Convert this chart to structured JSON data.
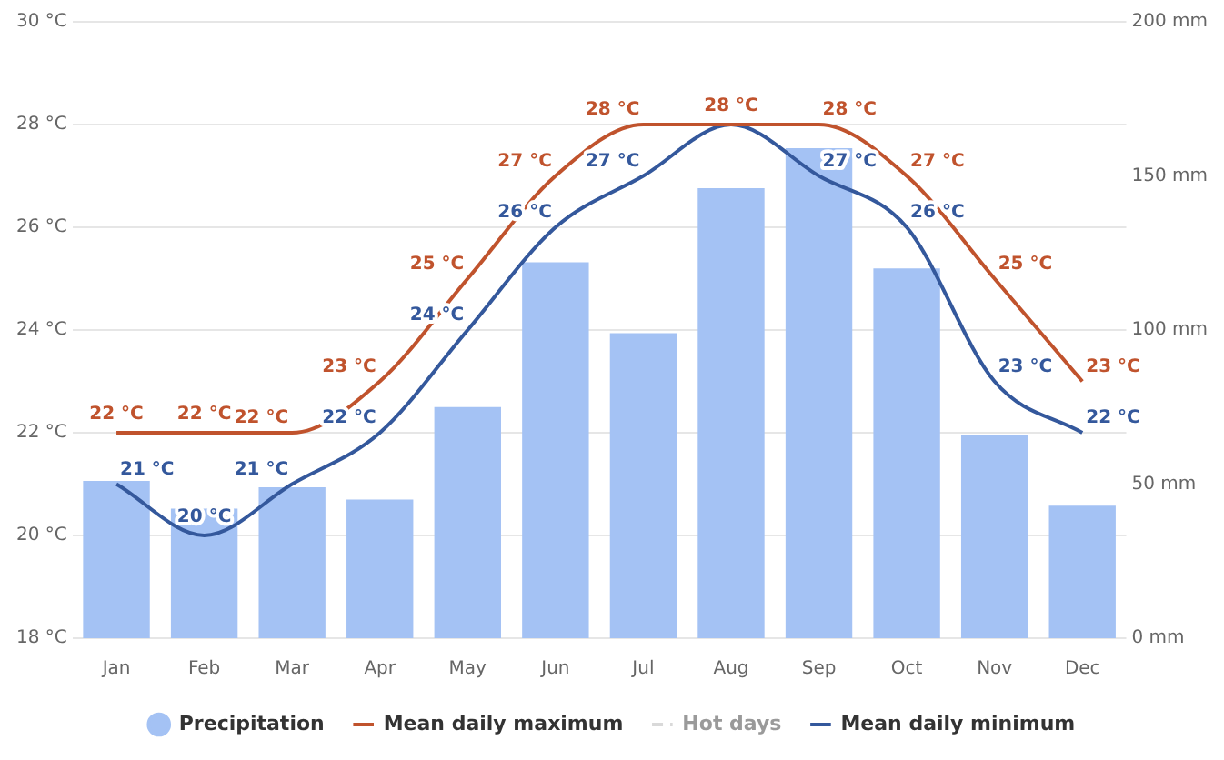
{
  "chart_data": {
    "type": "bar",
    "categories": [
      "Jan",
      "Feb",
      "Mar",
      "Apr",
      "May",
      "Jun",
      "Jul",
      "Aug",
      "Sep",
      "Oct",
      "Nov",
      "Dec"
    ],
    "series": [
      {
        "name": "Precipitation",
        "axis": "y2",
        "color": "#a4c2f4",
        "values": [
          51,
          42,
          49,
          45,
          75,
          122,
          99,
          146,
          159,
          120,
          66,
          43
        ]
      },
      {
        "name": "Mean daily maximum",
        "type": "line",
        "axis": "y",
        "color": "#c0532d",
        "values": [
          22,
          22,
          22,
          23,
          25,
          27,
          28,
          28,
          28,
          27,
          25,
          23
        ],
        "value_labels": [
          "22 °C",
          "22 °C",
          "22 °C",
          "23 °C",
          "25 °C",
          "27 °C",
          "28 °C",
          "28 °C",
          "28 °C",
          "27 °C",
          "25 °C",
          "23 °C"
        ]
      },
      {
        "name": "Hot days",
        "type": "line",
        "axis": "y",
        "color": "#d9d9d9",
        "line_style": "dashed",
        "values": [
          null,
          null,
          null,
          null,
          null,
          null,
          null,
          null,
          null,
          null,
          null,
          null
        ]
      },
      {
        "name": "Mean daily minimum",
        "type": "line",
        "axis": "y",
        "color": "#34589c",
        "values": [
          21,
          20,
          21,
          22,
          24,
          26,
          27,
          28,
          27,
          26,
          23,
          22
        ],
        "value_labels": [
          "21 °C",
          "20 °C",
          "21 °C",
          "22 °C",
          "24 °C",
          "26 °C",
          "27 °C",
          null,
          "27 °C",
          "26 °C",
          "23 °C",
          "22 °C"
        ]
      }
    ],
    "ylim": [
      18,
      30
    ],
    "yticks": [
      {
        "value": 18,
        "label": "18 °C"
      },
      {
        "value": 20,
        "label": "20 °C"
      },
      {
        "value": 22,
        "label": "22 °C"
      },
      {
        "value": 24,
        "label": "24 °C"
      },
      {
        "value": 26,
        "label": "26 °C"
      },
      {
        "value": 28,
        "label": "28 °C"
      },
      {
        "value": 30,
        "label": "30 °C"
      }
    ],
    "y2lim": [
      0,
      200
    ],
    "y2ticks": [
      {
        "value": 0,
        "label": "0 mm"
      },
      {
        "value": 50,
        "label": "50 mm"
      },
      {
        "value": 100,
        "label": "100 mm"
      },
      {
        "value": 150,
        "label": "150 mm"
      },
      {
        "value": 200,
        "label": "200 mm"
      }
    ],
    "grid": "y",
    "legend": "bottom",
    "marker": "none",
    "line_style": "solid"
  }
}
